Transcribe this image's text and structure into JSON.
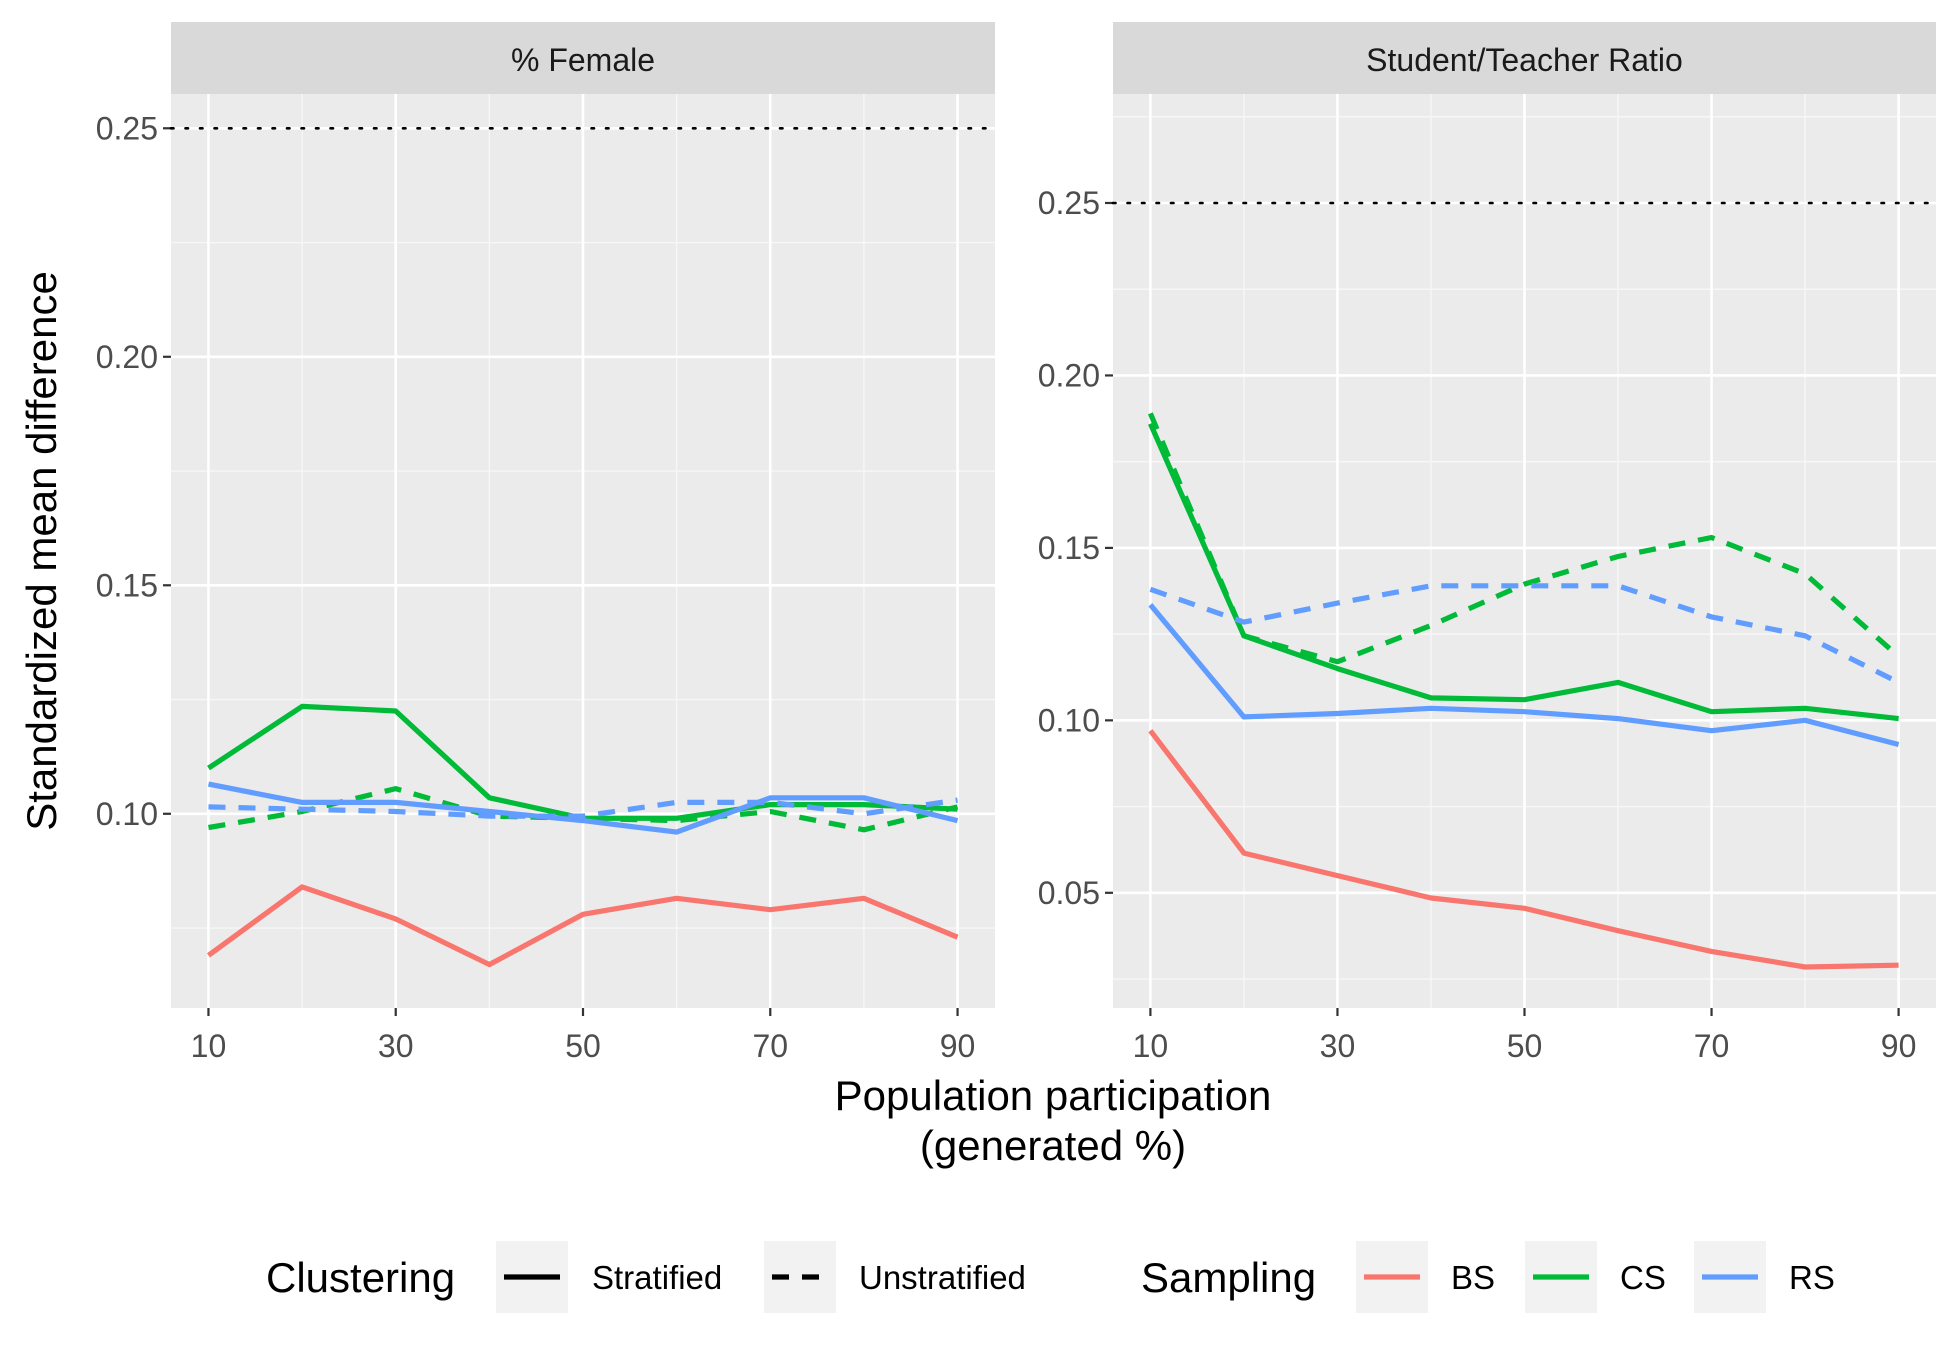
{
  "chart_data": {
    "type": "line",
    "x": [
      10,
      20,
      30,
      40,
      50,
      60,
      70,
      80,
      90
    ],
    "x_ticks": [
      "10",
      "30",
      "50",
      "70",
      "90"
    ],
    "xlabel_line1": "Population participation",
    "xlabel_line2": "(generated %)",
    "ylabel": "Standardized mean difference",
    "reference_line": 0.25,
    "colors": {
      "BS": "#F8766D",
      "CS": "#00BA38",
      "RS": "#619CFF"
    },
    "legend": {
      "clustering_title": "Clustering",
      "clustering_items": [
        "Stratified",
        "Unstratified"
      ],
      "sampling_title": "Sampling",
      "sampling_items": [
        "BS",
        "CS",
        "RS"
      ]
    },
    "panels": [
      {
        "title": "% Female",
        "ylim": [
          0.0575,
          0.2575
        ],
        "y_ticks": [
          "0.10",
          "0.15",
          "0.20",
          "0.25"
        ],
        "series": [
          {
            "sampling": "BS",
            "clustering": "Stratified",
            "values": [
              0.069,
              0.084,
              0.077,
              0.067,
              0.078,
              0.0815,
              0.079,
              0.0815,
              0.073
            ]
          },
          {
            "sampling": "CS",
            "clustering": "Stratified",
            "values": [
              0.11,
              0.1235,
              0.1225,
              0.1035,
              0.099,
              0.099,
              0.102,
              0.102,
              0.101
            ]
          },
          {
            "sampling": "CS",
            "clustering": "Unstratified",
            "values": [
              0.097,
              0.1005,
              0.1055,
              0.0995,
              0.099,
              0.0985,
              0.1005,
              0.0965,
              0.1015
            ]
          },
          {
            "sampling": "RS",
            "clustering": "Stratified",
            "values": [
              0.1065,
              0.1025,
              0.1025,
              0.1005,
              0.0985,
              0.096,
              0.1035,
              0.1035,
              0.0985
            ]
          },
          {
            "sampling": "RS",
            "clustering": "Unstratified",
            "values": [
              0.1015,
              0.101,
              0.1005,
              0.0995,
              0.0995,
              0.1025,
              0.1025,
              0.1,
              0.103
            ]
          }
        ]
      },
      {
        "title": "Student/Teacher Ratio",
        "ylim": [
          0.0166,
          0.2816
        ],
        "y_ticks": [
          "0.05",
          "0.10",
          "0.15",
          "0.20",
          "0.25"
        ],
        "series": [
          {
            "sampling": "BS",
            "clustering": "Stratified",
            "values": [
              0.097,
              0.0615,
              0.055,
              0.0485,
              0.0455,
              0.039,
              0.033,
              0.0285,
              0.029
            ]
          },
          {
            "sampling": "CS",
            "clustering": "Stratified",
            "values": [
              0.186,
              0.1245,
              0.115,
              0.1065,
              0.106,
              0.111,
              0.1025,
              0.1035,
              0.1005
            ]
          },
          {
            "sampling": "CS",
            "clustering": "Unstratified",
            "values": [
              0.189,
              0.1245,
              0.117,
              0.1275,
              0.1395,
              0.1475,
              0.153,
              0.1425,
              0.1185
            ]
          },
          {
            "sampling": "RS",
            "clustering": "Stratified",
            "values": [
              0.1335,
              0.101,
              0.102,
              0.1035,
              0.1025,
              0.1005,
              0.097,
              0.1,
              0.093
            ]
          },
          {
            "sampling": "RS",
            "clustering": "Unstratified",
            "values": [
              0.138,
              0.1285,
              0.134,
              0.139,
              0.139,
              0.139,
              0.13,
              0.1245,
              0.111
            ]
          }
        ]
      }
    ]
  }
}
